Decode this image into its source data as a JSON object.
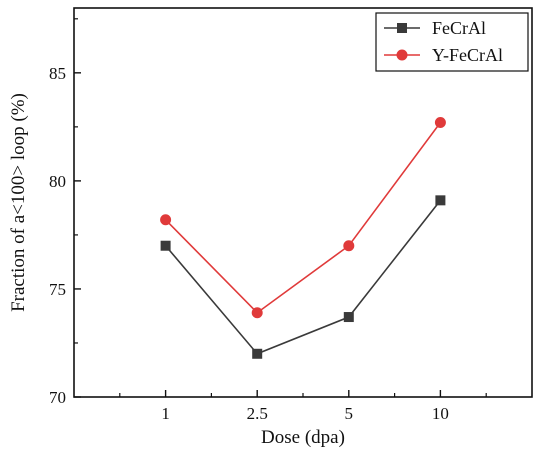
{
  "chart_data": {
    "type": "line",
    "title": "",
    "xlabel": "Dose (dpa)",
    "ylabel": "Fraction of a<100> loop (%)",
    "categories": [
      "1",
      "2.5",
      "5",
      "10"
    ],
    "yticks": [
      "70",
      "75",
      "80",
      "85"
    ],
    "ylim": [
      70,
      88
    ],
    "grid": false,
    "legend_position": "top-right",
    "series": [
      {
        "name": "FeCrAl",
        "values": [
          77.0,
          72.0,
          73.7,
          79.1
        ],
        "color": "#3a3a3a",
        "marker": "square"
      },
      {
        "name": "Y-FeCrAl",
        "values": [
          78.2,
          73.9,
          77.0,
          82.7
        ],
        "color": "#e03a3a",
        "marker": "circle"
      }
    ]
  }
}
